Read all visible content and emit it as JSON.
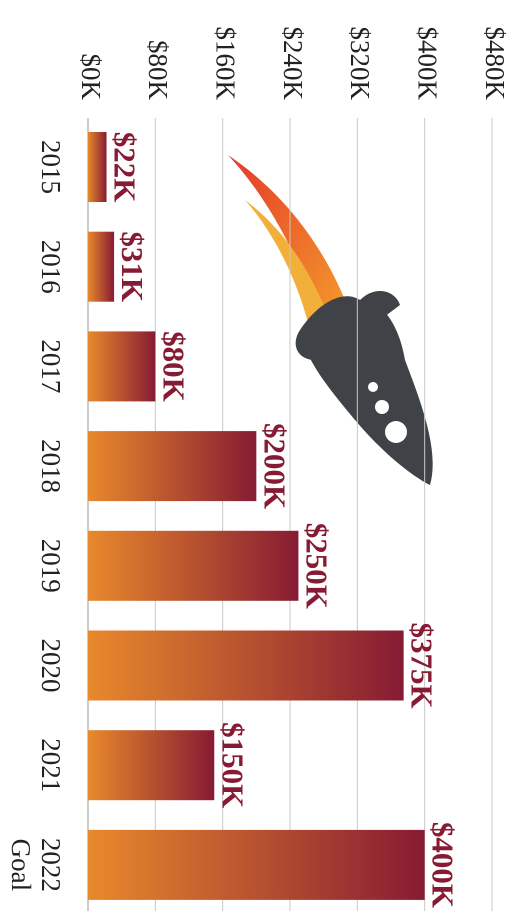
{
  "chart_data": {
    "type": "bar",
    "categories": [
      "2015",
      "2016",
      "2017",
      "2018",
      "2019",
      "2020",
      "2021",
      "2022 Goal"
    ],
    "values": [
      22,
      31,
      80,
      200,
      250,
      375,
      150,
      400
    ],
    "value_labels": [
      "$22K",
      "$31K",
      "$80K",
      "$200K",
      "$250K",
      "$375K",
      "$150K",
      "$400K"
    ],
    "colors": [
      "#e8892c",
      "#861b33"
    ],
    "ylim": [
      0,
      480
    ],
    "yticks": [
      {
        "value": 0,
        "label": "$0K"
      },
      {
        "value": 80,
        "label": "$80K"
      },
      {
        "value": 160,
        "label": "$160K"
      },
      {
        "value": 240,
        "label": "$240K"
      },
      {
        "value": 320,
        "label": "$320K"
      },
      {
        "value": 400,
        "label": "$400K"
      },
      {
        "value": 480,
        "label": "$480K"
      }
    ],
    "grid": true
  }
}
